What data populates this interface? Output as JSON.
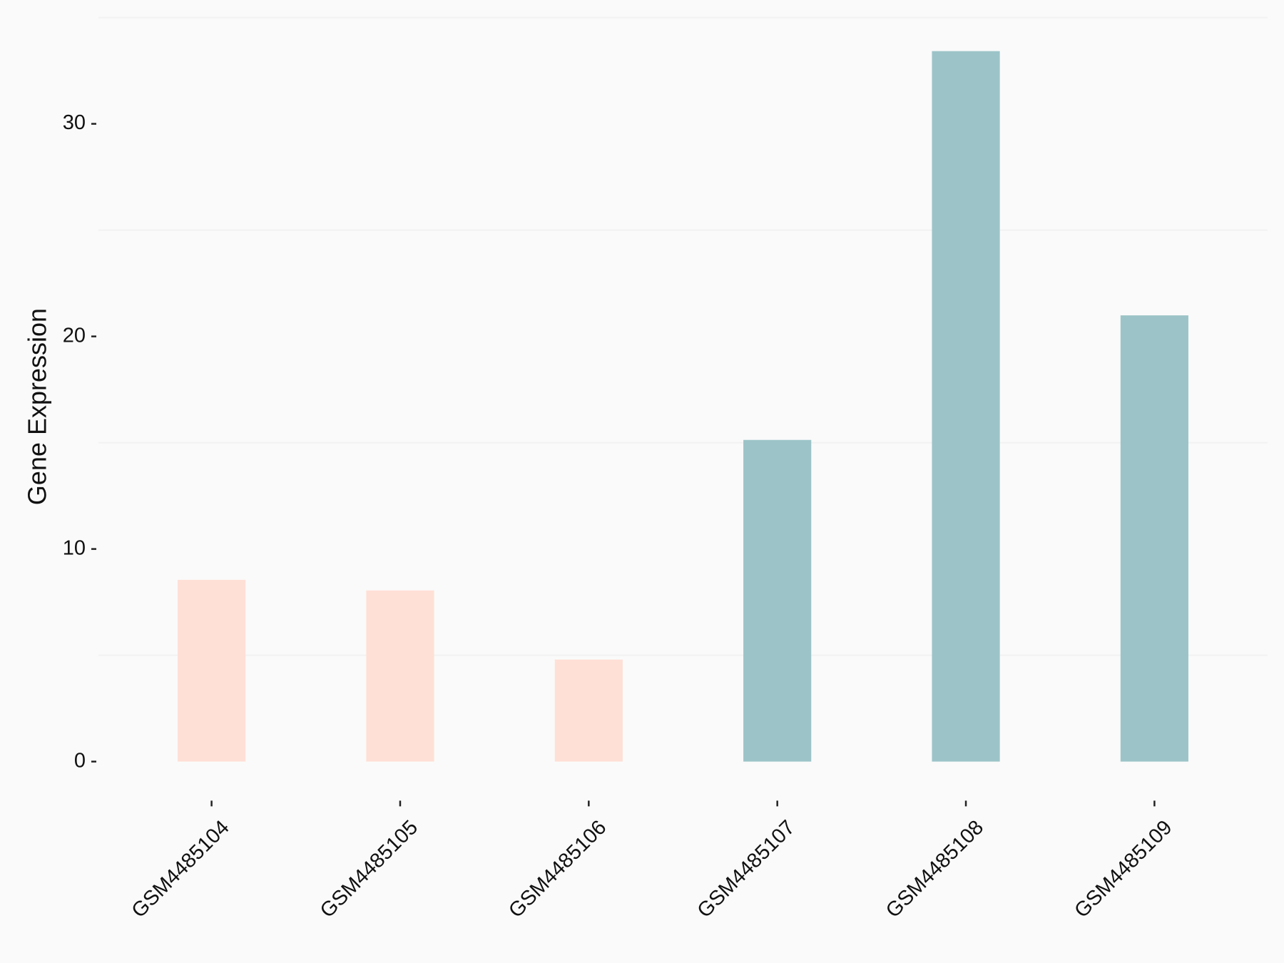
{
  "chart_data": {
    "type": "bar",
    "y_label": "Gene Expression",
    "categories": [
      "GSM4485104",
      "GSM4485105",
      "GSM4485106",
      "GSM4485107",
      "GSM4485108",
      "GSM4485109"
    ],
    "values": [
      8.55,
      8.05,
      4.8,
      15.13,
      33.42,
      20.99
    ],
    "colors": [
      "#FFE0D6",
      "#FFE0D6",
      "#FFE0D6",
      "#9CC4C8",
      "#9CC4C8",
      "#9CC4C8"
    ],
    "ylim": [
      -1.67,
      35.09
    ],
    "yticks": [
      0,
      10,
      20,
      30
    ],
    "minor_grid": [
      5,
      15,
      25,
      35
    ],
    "grid": true
  }
}
